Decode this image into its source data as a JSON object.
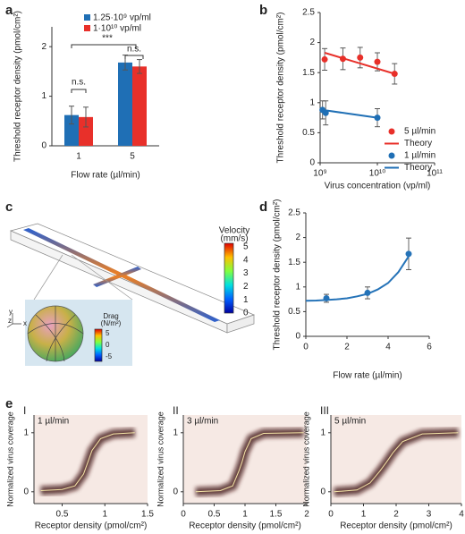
{
  "panel_labels": [
    "a",
    "b",
    "c",
    "d",
    "e"
  ],
  "chart_data": [
    {
      "type": "bar",
      "ylabel": "Threshold receptor density (pmol/cm²)",
      "xlabel": "Flow rate (µl/min)",
      "categories": [
        "1",
        "5"
      ],
      "series": [
        {
          "name": "1.25·10⁹ vp/ml",
          "color": "#1f6fb5",
          "values": [
            0.62,
            1.68
          ],
          "errors": [
            0.18,
            0.15
          ]
        },
        {
          "name": "1·10¹⁰ vp/ml",
          "color": "#e8302a",
          "values": [
            0.58,
            1.6
          ],
          "errors": [
            0.2,
            0.14
          ]
        }
      ],
      "ylim": [
        0,
        2.4
      ],
      "yticks": [
        0,
        1,
        2
      ],
      "legend": "upper left",
      "annotations": [
        "n.s.",
        "n.s.",
        "***"
      ]
    },
    {
      "type": "scatter",
      "ylabel": "Threshold receptor density (pmol/cm²)",
      "xlabel": "Virus concentration (vp/ml)",
      "log_x": true,
      "xlim": [
        1000000000,
        100000000000
      ],
      "xticks": [
        {
          "value": 1000000000,
          "label": "10⁹"
        },
        {
          "value": 10000000000,
          "label": "10¹⁰"
        },
        {
          "value": 100000000000,
          "label": "10¹¹"
        }
      ],
      "ylim": [
        0,
        2.5
      ],
      "yticks": [
        0,
        0.5,
        1,
        1.5,
        2,
        2.5
      ],
      "legend": "lower right",
      "series": [
        {
          "name": "5 µl/min",
          "color": "#e8302a",
          "kind": "points",
          "x": [
            1200000000,
            2500000000,
            5000000000,
            10000000000,
            20000000000
          ],
          "values": [
            1.72,
            1.73,
            1.75,
            1.68,
            1.48
          ],
          "errors": [
            0.18,
            0.18,
            0.17,
            0.15,
            0.17
          ]
        },
        {
          "name": "Theory",
          "color": "#e8302a",
          "kind": "line",
          "x": [
            1200000000,
            20000000000
          ],
          "values": [
            1.83,
            1.48
          ]
        },
        {
          "name": "1 µl/min",
          "color": "#1f6fb5",
          "kind": "points",
          "x": [
            1100000000,
            1250000000,
            10000000000
          ],
          "values": [
            0.88,
            0.83,
            0.75
          ],
          "errors": [
            0.15,
            0.2,
            0.15
          ]
        },
        {
          "name": "Theory",
          "color": "#1f6fb5",
          "kind": "line",
          "x": [
            1100000000,
            10000000000
          ],
          "values": [
            0.88,
            0.75
          ]
        }
      ]
    },
    {
      "type": "scatter",
      "ylabel": "Threshold receptor density (pmol/cm²)",
      "xlabel": "Flow rate (µl/min)",
      "xlim": [
        0,
        6
      ],
      "xticks": [
        0,
        2,
        4,
        6
      ],
      "ylim": [
        0,
        2.5
      ],
      "yticks": [
        0,
        0.5,
        1,
        1.5,
        2,
        2.5
      ],
      "series": [
        {
          "color": "#2573b8",
          "kind": "points",
          "x": [
            1,
            3,
            5
          ],
          "values": [
            0.77,
            0.88,
            1.67
          ],
          "errors": [
            0.08,
            0.12,
            0.32
          ]
        },
        {
          "color": "#2573b8",
          "kind": "line",
          "x": [
            0,
            0.5,
            1,
            1.5,
            2,
            2.5,
            3,
            3.5,
            4,
            4.5,
            5
          ],
          "values": [
            0.72,
            0.725,
            0.735,
            0.75,
            0.77,
            0.81,
            0.86,
            0.95,
            1.08,
            1.3,
            1.62
          ]
        }
      ]
    },
    {
      "type": "heatmap",
      "label": "I",
      "annotation": "1 µl/min",
      "ylabel": "Normalized virus coverage",
      "xlabel": "Receptor density (pmol/cm²)",
      "xlim": [
        0.17,
        1.5
      ],
      "xticks": [
        0.5,
        1,
        1.5
      ],
      "ylim": [
        -0.2,
        1.3
      ],
      "yticks": [
        0,
        1
      ],
      "series": [
        {
          "color": "#f5e6a8",
          "x": [
            0.25,
            0.5,
            0.65,
            0.75,
            0.8,
            0.85,
            0.95,
            1.1,
            1.35
          ],
          "values": [
            0.02,
            0.04,
            0.1,
            0.3,
            0.5,
            0.7,
            0.9,
            0.98,
            1.0
          ]
        }
      ]
    },
    {
      "type": "heatmap",
      "label": "II",
      "annotation": "3 µl/min",
      "ylabel": "Normalized virus coverage",
      "xlabel": "Receptor density (pmol/cm²)",
      "xlim": [
        0,
        2
      ],
      "xticks": [
        0,
        0.5,
        1,
        1.5,
        2
      ],
      "ylim": [
        -0.2,
        1.3
      ],
      "yticks": [
        0,
        1
      ],
      "series": [
        {
          "color": "#f5e6a8",
          "x": [
            0.2,
            0.6,
            0.8,
            0.9,
            0.95,
            1.0,
            1.1,
            1.3,
            1.95
          ],
          "values": [
            0.0,
            0.02,
            0.1,
            0.35,
            0.5,
            0.68,
            0.9,
            0.99,
            1.0
          ]
        }
      ]
    },
    {
      "type": "heatmap",
      "label": "III",
      "annotation": "5 µl/min",
      "ylabel": "Normalized virus coverage",
      "xlabel": "Receptor density (pmol/cm²)",
      "xlim": [
        0,
        4
      ],
      "xticks": [
        0,
        1,
        2,
        3,
        4
      ],
      "ylim": [
        -0.2,
        1.3
      ],
      "yticks": [
        0,
        1
      ],
      "series": [
        {
          "color": "#f5e6a8",
          "x": [
            0.1,
            0.8,
            1.2,
            1.5,
            1.7,
            1.9,
            2.2,
            2.8,
            3.9
          ],
          "values": [
            0.0,
            0.03,
            0.15,
            0.35,
            0.5,
            0.66,
            0.85,
            0.98,
            1.0
          ]
        }
      ]
    }
  ],
  "diagram": {
    "velocity_title": "Velocity",
    "velocity_unit": "(mm/s)",
    "velocity_ticks": [
      5,
      4,
      3,
      2,
      1,
      0
    ],
    "drag_title": "Drag",
    "drag_unit": "(N/m²)",
    "drag_ticks": [
      5,
      0,
      -5
    ],
    "axes": [
      "y",
      "z",
      "x"
    ]
  }
}
